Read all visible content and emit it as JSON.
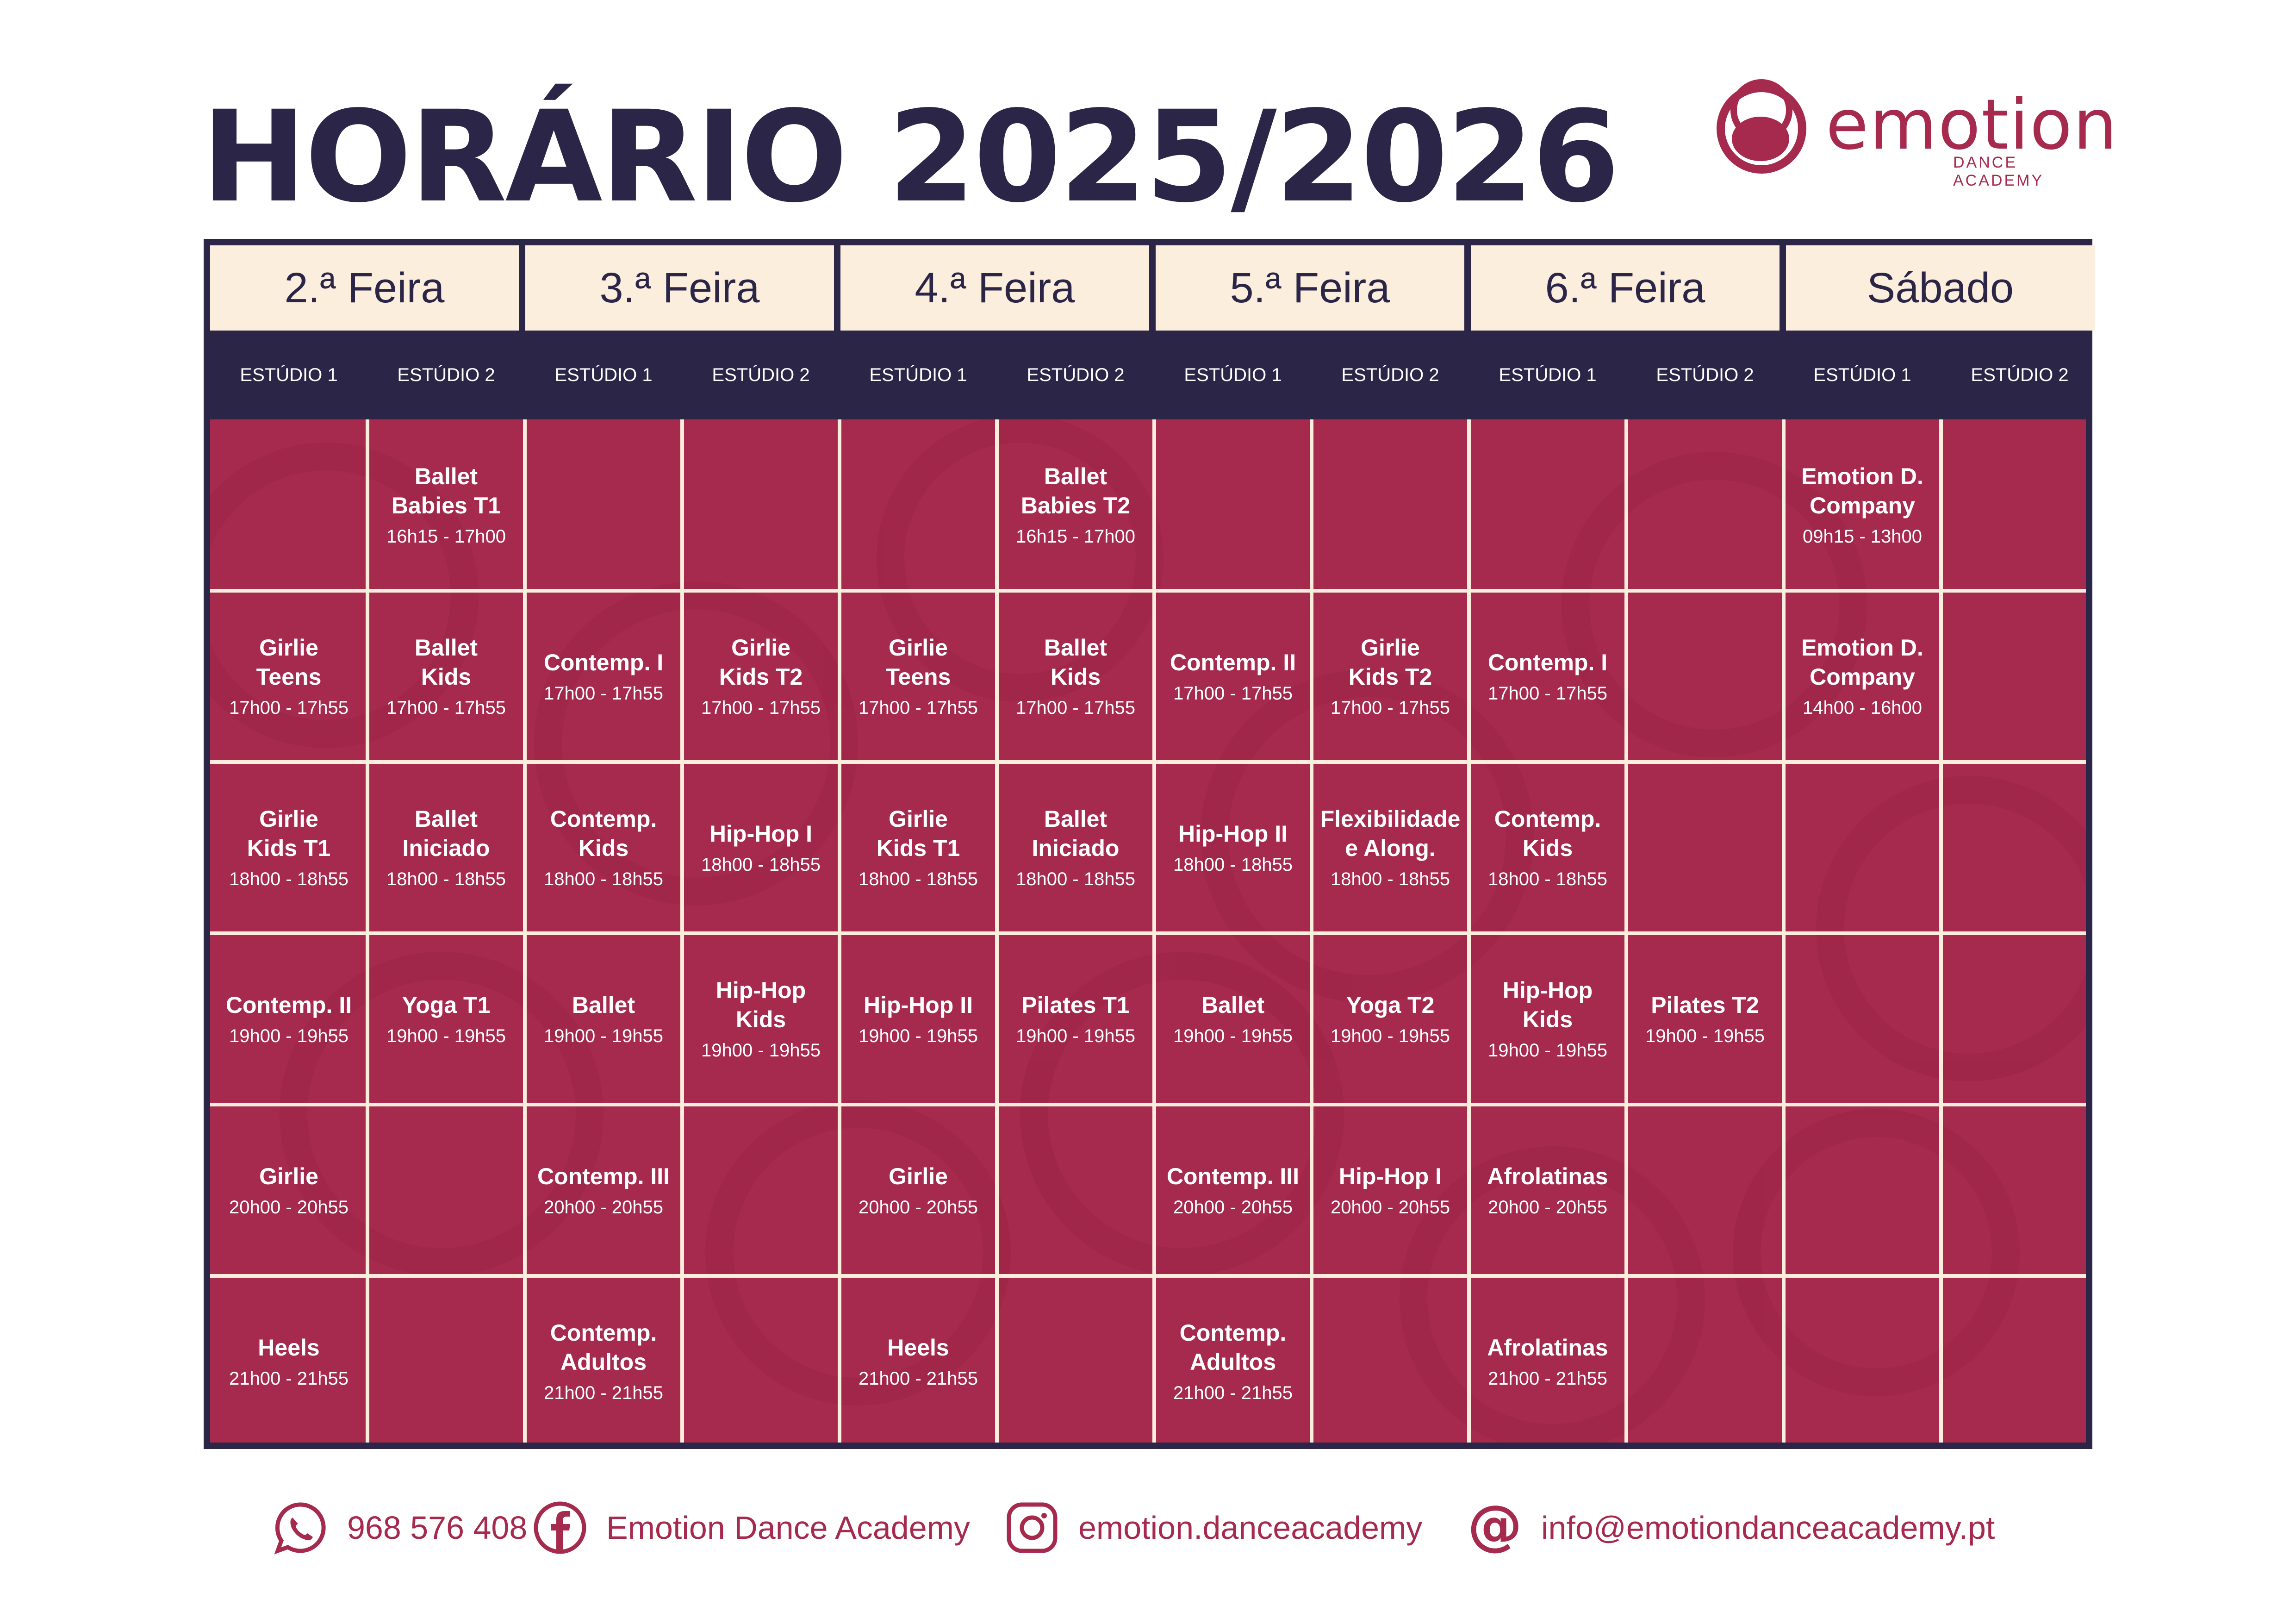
{
  "title": "HORÁRIO 2025/2026",
  "logo": {
    "word": "emotion",
    "subtitle": "DANCE ACADEMY"
  },
  "colors": {
    "navy": "#2b2647",
    "crimson": "#a62a4d",
    "cream": "#fbeedd",
    "white": "#ffffff"
  },
  "days": [
    "2.ª Feira",
    "3.ª Feira",
    "4.ª Feira",
    "5.ª Feira",
    "6.ª Feira",
    "Sábado"
  ],
  "studios": [
    "ESTÚDIO 1",
    "ESTÚDIO 2",
    "ESTÚDIO 1",
    "ESTÚDIO 2",
    "ESTÚDIO 1",
    "ESTÚDIO 2",
    "ESTÚDIO 1",
    "ESTÚDIO 2",
    "ESTÚDIO 1",
    "ESTÚDIO 2",
    "ESTÚDIO 1",
    "ESTÚDIO 2"
  ],
  "schedule": [
    [
      null,
      {
        "name": "Ballet\nBabies T1",
        "time": "16h15 - 17h00"
      },
      null,
      null,
      null,
      {
        "name": "Ballet\nBabies T2",
        "time": "16h15 - 17h00"
      },
      null,
      null,
      null,
      null,
      {
        "name": "Emotion D.\nCompany",
        "time": "09h15 - 13h00"
      },
      null
    ],
    [
      {
        "name": "Girlie\nTeens",
        "time": "17h00 - 17h55"
      },
      {
        "name": "Ballet\nKids",
        "time": "17h00 - 17h55"
      },
      {
        "name": "Contemp. I",
        "time": "17h00 - 17h55"
      },
      {
        "name": "Girlie\nKids T2",
        "time": "17h00 - 17h55"
      },
      {
        "name": "Girlie\nTeens",
        "time": "17h00 - 17h55"
      },
      {
        "name": "Ballet\nKids",
        "time": "17h00 - 17h55"
      },
      {
        "name": "Contemp. II",
        "time": "17h00 - 17h55"
      },
      {
        "name": "Girlie\nKids T2",
        "time": "17h00 - 17h55"
      },
      {
        "name": "Contemp. I",
        "time": "17h00 - 17h55"
      },
      null,
      {
        "name": "Emotion D.\nCompany",
        "time": "14h00 - 16h00"
      },
      null
    ],
    [
      {
        "name": "Girlie\nKids T1",
        "time": "18h00 - 18h55"
      },
      {
        "name": "Ballet\nIniciado",
        "time": "18h00 - 18h55"
      },
      {
        "name": "Contemp.\nKids",
        "time": "18h00 - 18h55"
      },
      {
        "name": "Hip-Hop I",
        "time": "18h00 - 18h55"
      },
      {
        "name": "Girlie\nKids T1",
        "time": "18h00 - 18h55"
      },
      {
        "name": "Ballet\nIniciado",
        "time": "18h00 - 18h55"
      },
      {
        "name": "Hip-Hop II",
        "time": "18h00 - 18h55"
      },
      {
        "name": "Flexibilidade\ne Along.",
        "time": "18h00 - 18h55"
      },
      {
        "name": "Contemp.\nKids",
        "time": "18h00 - 18h55"
      },
      null,
      null,
      null
    ],
    [
      {
        "name": "Contemp. II",
        "time": "19h00 - 19h55"
      },
      {
        "name": "Yoga T1",
        "time": "19h00 - 19h55"
      },
      {
        "name": "Ballet",
        "time": "19h00 - 19h55"
      },
      {
        "name": "Hip-Hop\nKids",
        "time": "19h00 - 19h55"
      },
      {
        "name": "Hip-Hop II",
        "time": "19h00 - 19h55"
      },
      {
        "name": "Pilates T1",
        "time": "19h00 - 19h55"
      },
      {
        "name": "Ballet",
        "time": "19h00 - 19h55"
      },
      {
        "name": "Yoga T2",
        "time": "19h00 - 19h55"
      },
      {
        "name": "Hip-Hop\nKids",
        "time": "19h00 - 19h55"
      },
      {
        "name": "Pilates T2",
        "time": "19h00 - 19h55"
      },
      null,
      null
    ],
    [
      {
        "name": "Girlie",
        "time": "20h00 - 20h55"
      },
      null,
      {
        "name": "Contemp. III",
        "time": "20h00 - 20h55"
      },
      null,
      {
        "name": "Girlie",
        "time": "20h00 - 20h55"
      },
      null,
      {
        "name": "Contemp. III",
        "time": "20h00 - 20h55"
      },
      {
        "name": "Hip-Hop I",
        "time": "20h00 - 20h55"
      },
      {
        "name": "Afrolatinas",
        "time": "20h00 - 20h55"
      },
      null,
      null,
      null
    ],
    [
      {
        "name": "Heels",
        "time": "21h00 - 21h55"
      },
      null,
      {
        "name": "Contemp.\nAdultos",
        "time": "21h00 - 21h55"
      },
      null,
      {
        "name": "Heels",
        "time": "21h00 - 21h55"
      },
      null,
      {
        "name": "Contemp.\nAdultos",
        "time": "21h00 - 21h55"
      },
      null,
      {
        "name": "Afrolatinas",
        "time": "21h00 - 21h55"
      },
      null,
      null,
      null
    ]
  ],
  "footer": {
    "phone": "968 576 408",
    "facebook": "Emotion Dance Academy",
    "instagram": "emotion.danceacademy",
    "email": "info@emotiondanceacademy.pt"
  }
}
